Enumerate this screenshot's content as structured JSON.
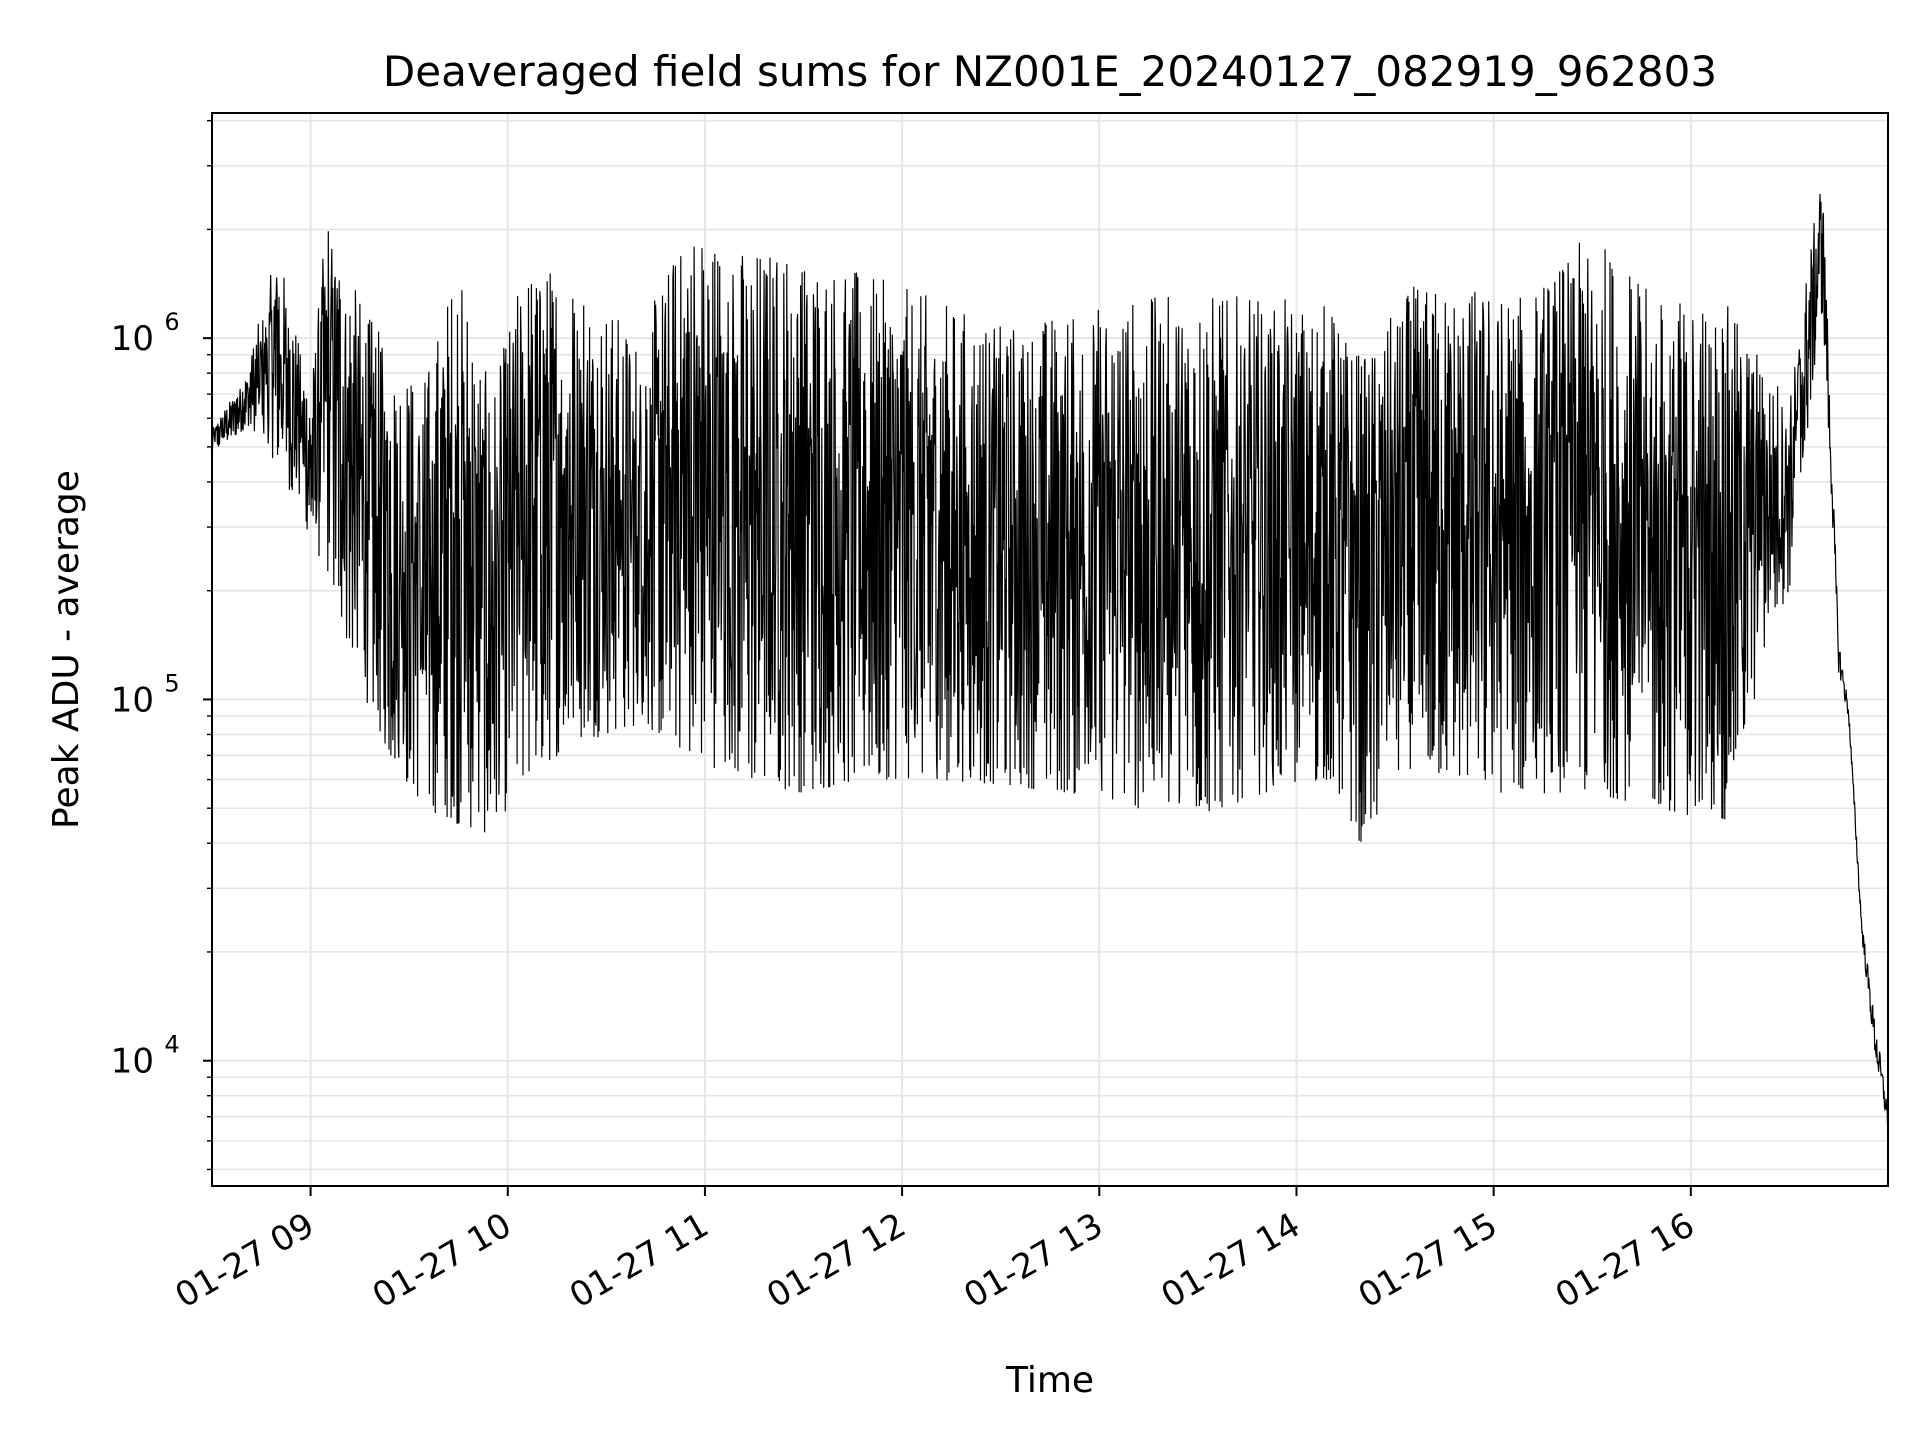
{
  "chart_data": {
    "type": "line",
    "title": "Deaveraged field sums for NZ001E_20240127_082919_962803",
    "xlabel": "Time",
    "ylabel": "Peak ADU - average",
    "x_range": [
      "2024-01-27T08:30",
      "2024-01-27T17:00"
    ],
    "y_scale": "log",
    "ylim": [
      4500,
      4200000
    ],
    "grid": true,
    "x_tick_labels": [
      {
        "t": "2024-01-27T09:00",
        "label": "01-27 09"
      },
      {
        "t": "2024-01-27T10:00",
        "label": "01-27 10"
      },
      {
        "t": "2024-01-27T11:00",
        "label": "01-27 11"
      },
      {
        "t": "2024-01-27T12:00",
        "label": "01-27 12"
      },
      {
        "t": "2024-01-27T13:00",
        "label": "01-27 13"
      },
      {
        "t": "2024-01-27T14:00",
        "label": "01-27 14"
      },
      {
        "t": "2024-01-27T15:00",
        "label": "01-27 15"
      },
      {
        "t": "2024-01-27T16:00",
        "label": "01-27 16"
      }
    ],
    "y_tick_labels": [
      {
        "value": 10000,
        "base": "10",
        "exp": "4"
      },
      {
        "value": 100000,
        "base": "10",
        "exp": "5"
      },
      {
        "value": 1000000,
        "base": "10",
        "exp": "6"
      }
    ],
    "line_color": "#000000",
    "grid_color": "#e6e6e6",
    "series": [
      {
        "values": [
          {
            "t": "2024-01-27T08:30",
            "lower": 480000,
            "upper": 560000
          },
          {
            "t": "2024-01-27T08:40",
            "lower": 560000,
            "upper": 780000
          },
          {
            "t": "2024-01-27T08:50",
            "lower": 450000,
            "upper": 1800000
          },
          {
            "t": "2024-01-27T09:00",
            "lower": 280000,
            "upper": 700000
          },
          {
            "t": "2024-01-27T09:05",
            "lower": 220000,
            "upper": 2300000
          },
          {
            "t": "2024-01-27T09:15",
            "lower": 110000,
            "upper": 1300000
          },
          {
            "t": "2024-01-27T09:25",
            "lower": 65000,
            "upper": 900000
          },
          {
            "t": "2024-01-27T09:35",
            "lower": 50000,
            "upper": 800000
          },
          {
            "t": "2024-01-27T09:45",
            "lower": 45000,
            "upper": 1700000
          },
          {
            "t": "2024-01-27T09:55",
            "lower": 42000,
            "upper": 700000
          },
          {
            "t": "2024-01-27T10:05",
            "lower": 60000,
            "upper": 1600000
          },
          {
            "t": "2024-01-27T10:20",
            "lower": 75000,
            "upper": 1600000
          },
          {
            "t": "2024-01-27T10:40",
            "lower": 85000,
            "upper": 1000000
          },
          {
            "t": "2024-01-27T10:55",
            "lower": 70000,
            "upper": 2200000
          },
          {
            "t": "2024-01-27T11:10",
            "lower": 60000,
            "upper": 1800000
          },
          {
            "t": "2024-01-27T11:30",
            "lower": 55000,
            "upper": 1800000
          },
          {
            "t": "2024-01-27T11:50",
            "lower": 60000,
            "upper": 1500000
          },
          {
            "t": "2024-01-27T12:10",
            "lower": 60000,
            "upper": 1300000
          },
          {
            "t": "2024-01-27T12:30",
            "lower": 58000,
            "upper": 1100000
          },
          {
            "t": "2024-01-27T12:50",
            "lower": 55000,
            "upper": 1200000
          },
          {
            "t": "2024-01-27T13:10",
            "lower": 50000,
            "upper": 1300000
          },
          {
            "t": "2024-01-27T13:30",
            "lower": 47000,
            "upper": 1350000
          },
          {
            "t": "2024-01-27T13:50",
            "lower": 55000,
            "upper": 1300000
          },
          {
            "t": "2024-01-27T14:10",
            "lower": 60000,
            "upper": 1250000
          },
          {
            "t": "2024-01-27T14:20",
            "lower": 39000,
            "upper": 900000
          },
          {
            "t": "2024-01-27T14:35",
            "lower": 65000,
            "upper": 1400000
          },
          {
            "t": "2024-01-27T14:55",
            "lower": 55000,
            "upper": 1400000
          },
          {
            "t": "2024-01-27T15:10",
            "lower": 55000,
            "upper": 1300000
          },
          {
            "t": "2024-01-27T15:30",
            "lower": 55000,
            "upper": 2000000
          },
          {
            "t": "2024-01-27T15:50",
            "lower": 50000,
            "upper": 1300000
          },
          {
            "t": "2024-01-27T16:10",
            "lower": 45000,
            "upper": 1300000
          },
          {
            "t": "2024-01-27T16:25",
            "lower": 160000,
            "upper": 800000
          },
          {
            "t": "2024-01-27T16:30",
            "lower": 200000,
            "upper": 700000
          },
          {
            "t": "2024-01-27T16:40",
            "lower": 1200000,
            "upper": 3000000
          },
          {
            "t": "2024-01-27T16:45",
            "lower": 110000,
            "upper": 160000
          },
          {
            "t": "2024-01-27T16:48",
            "lower": 85000,
            "upper": 100000
          },
          {
            "t": "2024-01-27T16:52",
            "lower": 21000,
            "upper": 26000
          },
          {
            "t": "2024-01-27T16:56",
            "lower": 9500,
            "upper": 14000
          },
          {
            "t": "2024-01-27T17:00",
            "lower": 6000,
            "upper": 8000
          }
        ]
      }
    ]
  }
}
